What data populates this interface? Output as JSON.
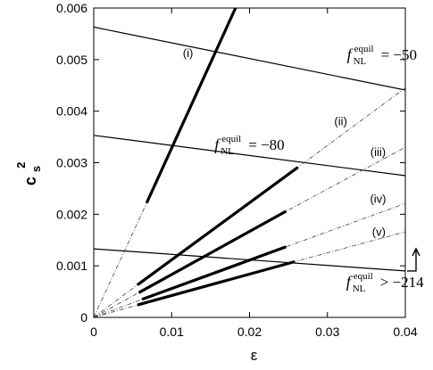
{
  "chart_data": {
    "type": "line",
    "xlabel": "ε",
    "ylabel": {
      "base": "c",
      "sub": "s",
      "sup": "2"
    },
    "xlim": [
      0,
      0.04
    ],
    "ylim": [
      0,
      0.006
    ],
    "x_ticks": [
      0,
      0.01,
      0.02,
      0.03,
      0.04
    ],
    "y_ticks": [
      0,
      0.001,
      0.002,
      0.003,
      0.004,
      0.005,
      0.006
    ],
    "x_tick_labels": [
      "0",
      "0.01",
      "0.02",
      "0.03",
      "0.04"
    ],
    "y_tick_labels": [
      "0",
      "0.001",
      "0.002",
      "0.003",
      "0.004",
      "0.005",
      "0.006"
    ],
    "grid": false,
    "constraint_lines": [
      {
        "x": [
          0,
          0.04
        ],
        "y": [
          0.00563,
          0.00441
        ]
      },
      {
        "x": [
          0,
          0.04
        ],
        "y": [
          0.00353,
          0.00275
        ]
      },
      {
        "x": [
          0,
          0.04
        ],
        "y": [
          0.00133,
          0.0009
        ]
      }
    ],
    "trajectories": [
      {
        "label": "(i)",
        "dashed_x": [
          0,
          0.0068
        ],
        "dashed_y": [
          0,
          0.00222
        ],
        "solid_x": [
          0.0068,
          0.0182
        ],
        "solid_y": [
          0.00222,
          0.006
        ]
      },
      {
        "label": "(ii)",
        "dashed_x": [
          0,
          0.0056,
          0.0262,
          0.04
        ],
        "dashed_y": [
          0,
          0.00063,
          0.00291,
          0.00445
        ],
        "solid_x": [
          0.0056,
          0.0262
        ],
        "solid_y": [
          0.00063,
          0.00291
        ]
      },
      {
        "label": "(iii)",
        "dashed_x": [
          0,
          0.0058,
          0.0247,
          0.04
        ],
        "dashed_y": [
          0,
          0.00048,
          0.00206,
          0.0033
        ],
        "solid_x": [
          0.0058,
          0.0247
        ],
        "solid_y": [
          0.00048,
          0.00206
        ]
      },
      {
        "label": "(iv)",
        "dashed_x": [
          0,
          0.0062,
          0.0247,
          0.04
        ],
        "dashed_y": [
          0,
          0.00035,
          0.00137,
          0.00221
        ],
        "solid_x": [
          0.0062,
          0.0247
        ],
        "solid_y": [
          0.00035,
          0.00137
        ]
      },
      {
        "label": "(v)",
        "dashed_x": [
          0,
          0.0056,
          0.0258,
          0.04
        ],
        "dashed_y": [
          0,
          0.00024,
          0.00108,
          0.00166
        ],
        "solid_x": [
          0.0056,
          0.0258
        ],
        "solid_y": [
          0.00024,
          0.00108
        ]
      }
    ],
    "annotations": [
      {
        "text": "(i)",
        "x": 0.0121,
        "y": 0.00505
      },
      {
        "text": "(ii)",
        "x": 0.0317,
        "y": 0.00373
      },
      {
        "text": "(iii)",
        "x": 0.0365,
        "y": 0.00313
      },
      {
        "text": "(iv)",
        "x": 0.0365,
        "y": 0.00222
      },
      {
        "text": "(v)",
        "x": 0.0366,
        "y": 0.00158
      }
    ],
    "fnl_labels": [
      {
        "main": "f",
        "sub": "NL",
        "sup": "equil",
        "relation": "= −50",
        "x": 0.0325,
        "y": 0.005
      },
      {
        "main": "f",
        "sub": "NL",
        "sup": "equil",
        "relation": "= −80",
        "x": 0.0155,
        "y": 0.00325
      },
      {
        "main": "f",
        "sub": "NL",
        "sup": "equil",
        "relation": "> −214",
        "x": 0.0324,
        "y": 0.00059
      }
    ]
  }
}
